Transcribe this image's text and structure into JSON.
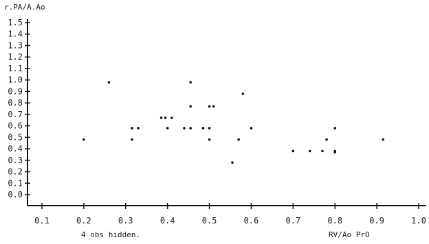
{
  "chart_data": {
    "type": "scatter",
    "title": "",
    "ylabel": "r.PA/A.Ao",
    "xlabel": "RV/Ao PrO",
    "annotation": "4 obs hidden.",
    "xlim": [
      0.1,
      1.0
    ],
    "ylim": [
      0.0,
      1.5
    ],
    "x_ticks": [
      "0.1",
      "0.2",
      "0.3",
      "0.4",
      "0.5",
      "0.6",
      "0.7",
      "0.8",
      "0.9",
      "1.0"
    ],
    "y_ticks": [
      "0.0",
      "0.1",
      "0.2",
      "0.3",
      "0.4",
      "0.5",
      "0.6",
      "0.7",
      "0.8",
      "0.9",
      "1.0",
      "1.1",
      "1.2",
      "1.3",
      "1.4",
      "1.5"
    ],
    "grid": false,
    "marker_color": "#111111",
    "points": [
      {
        "x": 0.2,
        "y": 0.48
      },
      {
        "x": 0.26,
        "y": 0.98
      },
      {
        "x": 0.315,
        "y": 0.58
      },
      {
        "x": 0.315,
        "y": 0.48
      },
      {
        "x": 0.33,
        "y": 0.58
      },
      {
        "x": 0.385,
        "y": 0.67
      },
      {
        "x": 0.395,
        "y": 0.67
      },
      {
        "x": 0.4,
        "y": 0.58
      },
      {
        "x": 0.41,
        "y": 0.67
      },
      {
        "x": 0.44,
        "y": 0.58
      },
      {
        "x": 0.455,
        "y": 0.98
      },
      {
        "x": 0.455,
        "y": 0.77
      },
      {
        "x": 0.455,
        "y": 0.58
      },
      {
        "x": 0.485,
        "y": 0.58
      },
      {
        "x": 0.5,
        "y": 0.77
      },
      {
        "x": 0.5,
        "y": 0.58
      },
      {
        "x": 0.5,
        "y": 0.48
      },
      {
        "x": 0.51,
        "y": 0.77
      },
      {
        "x": 0.555,
        "y": 0.28
      },
      {
        "x": 0.57,
        "y": 0.48
      },
      {
        "x": 0.58,
        "y": 0.88
      },
      {
        "x": 0.6,
        "y": 0.58
      },
      {
        "x": 0.7,
        "y": 0.38
      },
      {
        "x": 0.74,
        "y": 0.38
      },
      {
        "x": 0.77,
        "y": 0.38
      },
      {
        "x": 0.78,
        "y": 0.48
      },
      {
        "x": 0.8,
        "y": 0.58
      },
      {
        "x": 0.8,
        "y": 0.38
      },
      {
        "x": 0.8,
        "y": 0.37
      },
      {
        "x": 0.915,
        "y": 0.48
      }
    ]
  }
}
